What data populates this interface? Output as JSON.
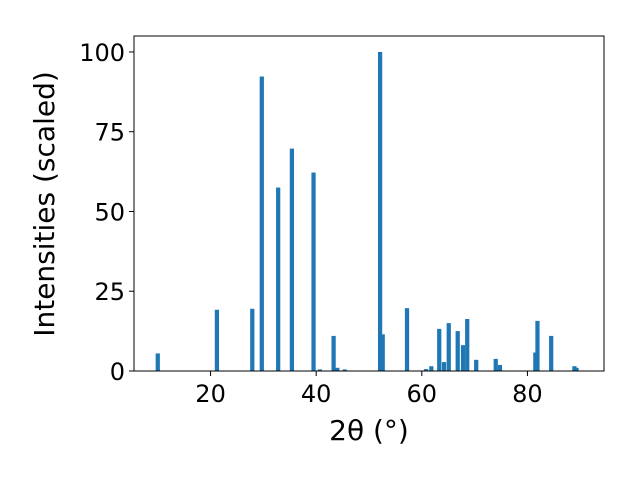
{
  "chart_data": {
    "type": "bar",
    "xlabel": "2θ (°)",
    "ylabel": "Intensities (scaled)",
    "xlim": [
      5.5,
      94.5
    ],
    "ylim": [
      0,
      105
    ],
    "x_ticks": [
      20,
      40,
      60,
      80
    ],
    "y_ticks": [
      0,
      25,
      50,
      75,
      100
    ],
    "x_tick_labels": [
      "20",
      "40",
      "60",
      "80"
    ],
    "y_tick_labels": [
      "0",
      "25",
      "50",
      "75",
      "100"
    ],
    "grid": false,
    "bar_color": "#1f77b4",
    "bar_width": 0.8,
    "x": [
      10.0,
      21.2,
      27.9,
      29.7,
      32.8,
      35.4,
      39.5,
      40.7,
      43.3,
      44.0,
      45.4,
      52.1,
      52.6,
      57.2,
      60.8,
      61.8,
      63.3,
      64.2,
      65.1,
      66.8,
      67.8,
      68.6,
      70.3,
      74.0,
      74.8,
      81.5,
      81.9,
      84.5,
      88.9,
      89.3
    ],
    "values": [
      5.5,
      19.2,
      19.5,
      92.3,
      57.5,
      69.7,
      62.2,
      0.5,
      11.0,
      1.0,
      0.5,
      100.0,
      11.5,
      19.7,
      0.6,
      1.5,
      13.2,
      2.8,
      15.0,
      12.5,
      8.1,
      16.3,
      3.5,
      3.8,
      1.9,
      5.8,
      15.7,
      11.0,
      1.5,
      1.0
    ]
  }
}
